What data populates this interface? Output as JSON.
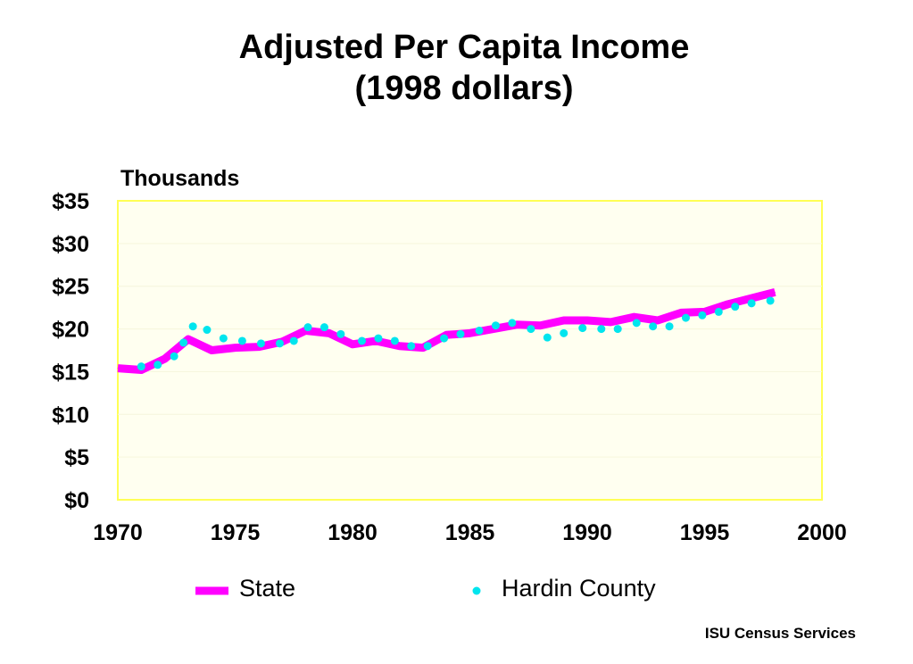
{
  "title_line1": "Adjusted Per Capita Income",
  "title_line2": "(1998 dollars)",
  "source": "ISU Census Services",
  "colors": {
    "state": "#ff00ff",
    "county": "#00e5ee",
    "plot_border": "#ffff55",
    "plot_bg": "#fffff0"
  },
  "chart_data": {
    "type": "line",
    "unit_label": "Thousands",
    "x_ticks": [
      "1970",
      "1975",
      "1980",
      "1985",
      "1990",
      "1995",
      "2000"
    ],
    "y_ticks": [
      "$0",
      "$5",
      "$10",
      "$15",
      "$20",
      "$25",
      "$30",
      "$35"
    ],
    "xlim": [
      1970,
      2000
    ],
    "ylim": [
      0,
      35
    ],
    "legend_position": "bottom",
    "series": [
      {
        "name": "State",
        "style": "line",
        "x": [
          1970,
          1971,
          1972,
          1973,
          1974,
          1975,
          1976,
          1977,
          1978,
          1979,
          1980,
          1981,
          1982,
          1983,
          1984,
          1985,
          1986,
          1987,
          1988,
          1989,
          1990,
          1991,
          1992,
          1993,
          1994,
          1995,
          1996,
          1997,
          1998
        ],
        "values": [
          15.4,
          15.2,
          16.5,
          18.8,
          17.5,
          17.8,
          17.9,
          18.5,
          19.8,
          19.5,
          18.2,
          18.6,
          18.0,
          17.8,
          19.3,
          19.5,
          20.0,
          20.5,
          20.4,
          21.0,
          21.0,
          20.8,
          21.4,
          21.0,
          21.9,
          22.0,
          22.9,
          23.6,
          24.3
        ]
      },
      {
        "name": "Hardin County",
        "style": "dots",
        "x": [
          1971,
          1971.7,
          1972.4,
          1972.8,
          1973.2,
          1973.8,
          1974.5,
          1975.3,
          1976.1,
          1976.9,
          1977.5,
          1978.1,
          1978.8,
          1979.5,
          1980.4,
          1981.1,
          1981.8,
          1982.5,
          1983.2,
          1983.9,
          1984.6,
          1985.4,
          1986.1,
          1986.8,
          1987.6,
          1988.3,
          1989.0,
          1989.8,
          1990.6,
          1991.3,
          1992.1,
          1992.8,
          1993.5,
          1994.2,
          1994.9,
          1995.6,
          1996.3,
          1997.0,
          1997.8
        ],
        "values": [
          15.6,
          15.8,
          16.8,
          18.4,
          20.3,
          19.9,
          18.9,
          18.6,
          18.3,
          18.3,
          18.6,
          20.2,
          20.2,
          19.4,
          18.6,
          18.9,
          18.6,
          18.0,
          18.0,
          18.9,
          19.4,
          19.8,
          20.4,
          20.7,
          20.0,
          19.0,
          19.5,
          20.1,
          20.0,
          20.0,
          20.7,
          20.3,
          20.3,
          21.3,
          21.6,
          22.0,
          22.6,
          23.0,
          23.3
        ]
      }
    ]
  }
}
